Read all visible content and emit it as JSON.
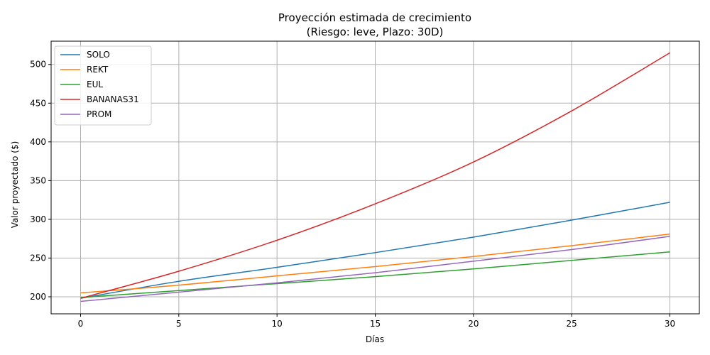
{
  "chart_data": {
    "type": "line",
    "title": "Proyección estimada de crecimiento",
    "subtitle": "(Riesgo: leve, Plazo: 30D)",
    "xlabel": "Días",
    "ylabel": "Valor proyectado ($)",
    "xlim": [
      -1.5,
      31.5
    ],
    "ylim": [
      178,
      530
    ],
    "xticks": [
      0,
      5,
      10,
      15,
      20,
      25,
      30
    ],
    "yticks": [
      200,
      250,
      300,
      350,
      400,
      450,
      500
    ],
    "grid": true,
    "legend_position": "top-left",
    "x": [
      0,
      5,
      10,
      15,
      20,
      25,
      30
    ],
    "series": [
      {
        "name": "SOLO",
        "color": "#1f77b4",
        "values": [
          198,
          220,
          238,
          257,
          277,
          299,
          322
        ]
      },
      {
        "name": "REKT",
        "color": "#ff7f0e",
        "values": [
          205,
          215,
          227,
          239,
          252,
          266,
          281
        ]
      },
      {
        "name": "EUL",
        "color": "#2ca02c",
        "values": [
          199,
          208,
          217,
          226,
          236,
          247,
          258
        ]
      },
      {
        "name": "BANANAS31",
        "color": "#d62728",
        "values": [
          198,
          233,
          273,
          320,
          374,
          440,
          515
        ]
      },
      {
        "name": "PROM",
        "color": "#9467bd",
        "values": [
          194,
          206,
          218,
          231,
          246,
          261,
          278
        ]
      }
    ]
  }
}
